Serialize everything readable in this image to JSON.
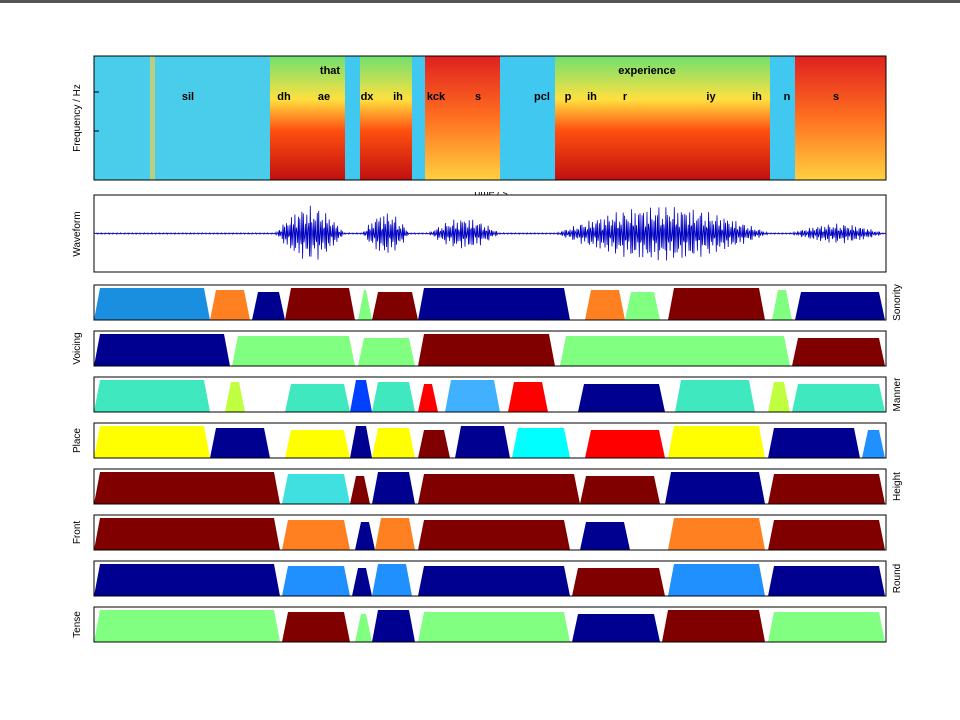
{
  "spectrogram": {
    "y_label": "Frequency / Hz",
    "x_label": "Time / s",
    "words": [
      "that",
      "experience"
    ],
    "phones": [
      "sil",
      "dh",
      "ae",
      "dx",
      "ih",
      "kck",
      "s",
      "pcl",
      "p",
      "ih",
      "r",
      "iy",
      "ih",
      "n",
      "s"
    ]
  },
  "waveform": {
    "y_label": "Waveform"
  },
  "feature_panels": [
    {
      "label": "Sonority",
      "side": "right"
    },
    {
      "label": "Voicing",
      "side": "left"
    },
    {
      "label": "Manner",
      "side": "right"
    },
    {
      "label": "Place",
      "side": "left"
    },
    {
      "label": "Height",
      "side": "right"
    },
    {
      "label": "Front",
      "side": "left"
    },
    {
      "label": "Round",
      "side": "right"
    },
    {
      "label": "Tense",
      "side": "left"
    }
  ]
}
